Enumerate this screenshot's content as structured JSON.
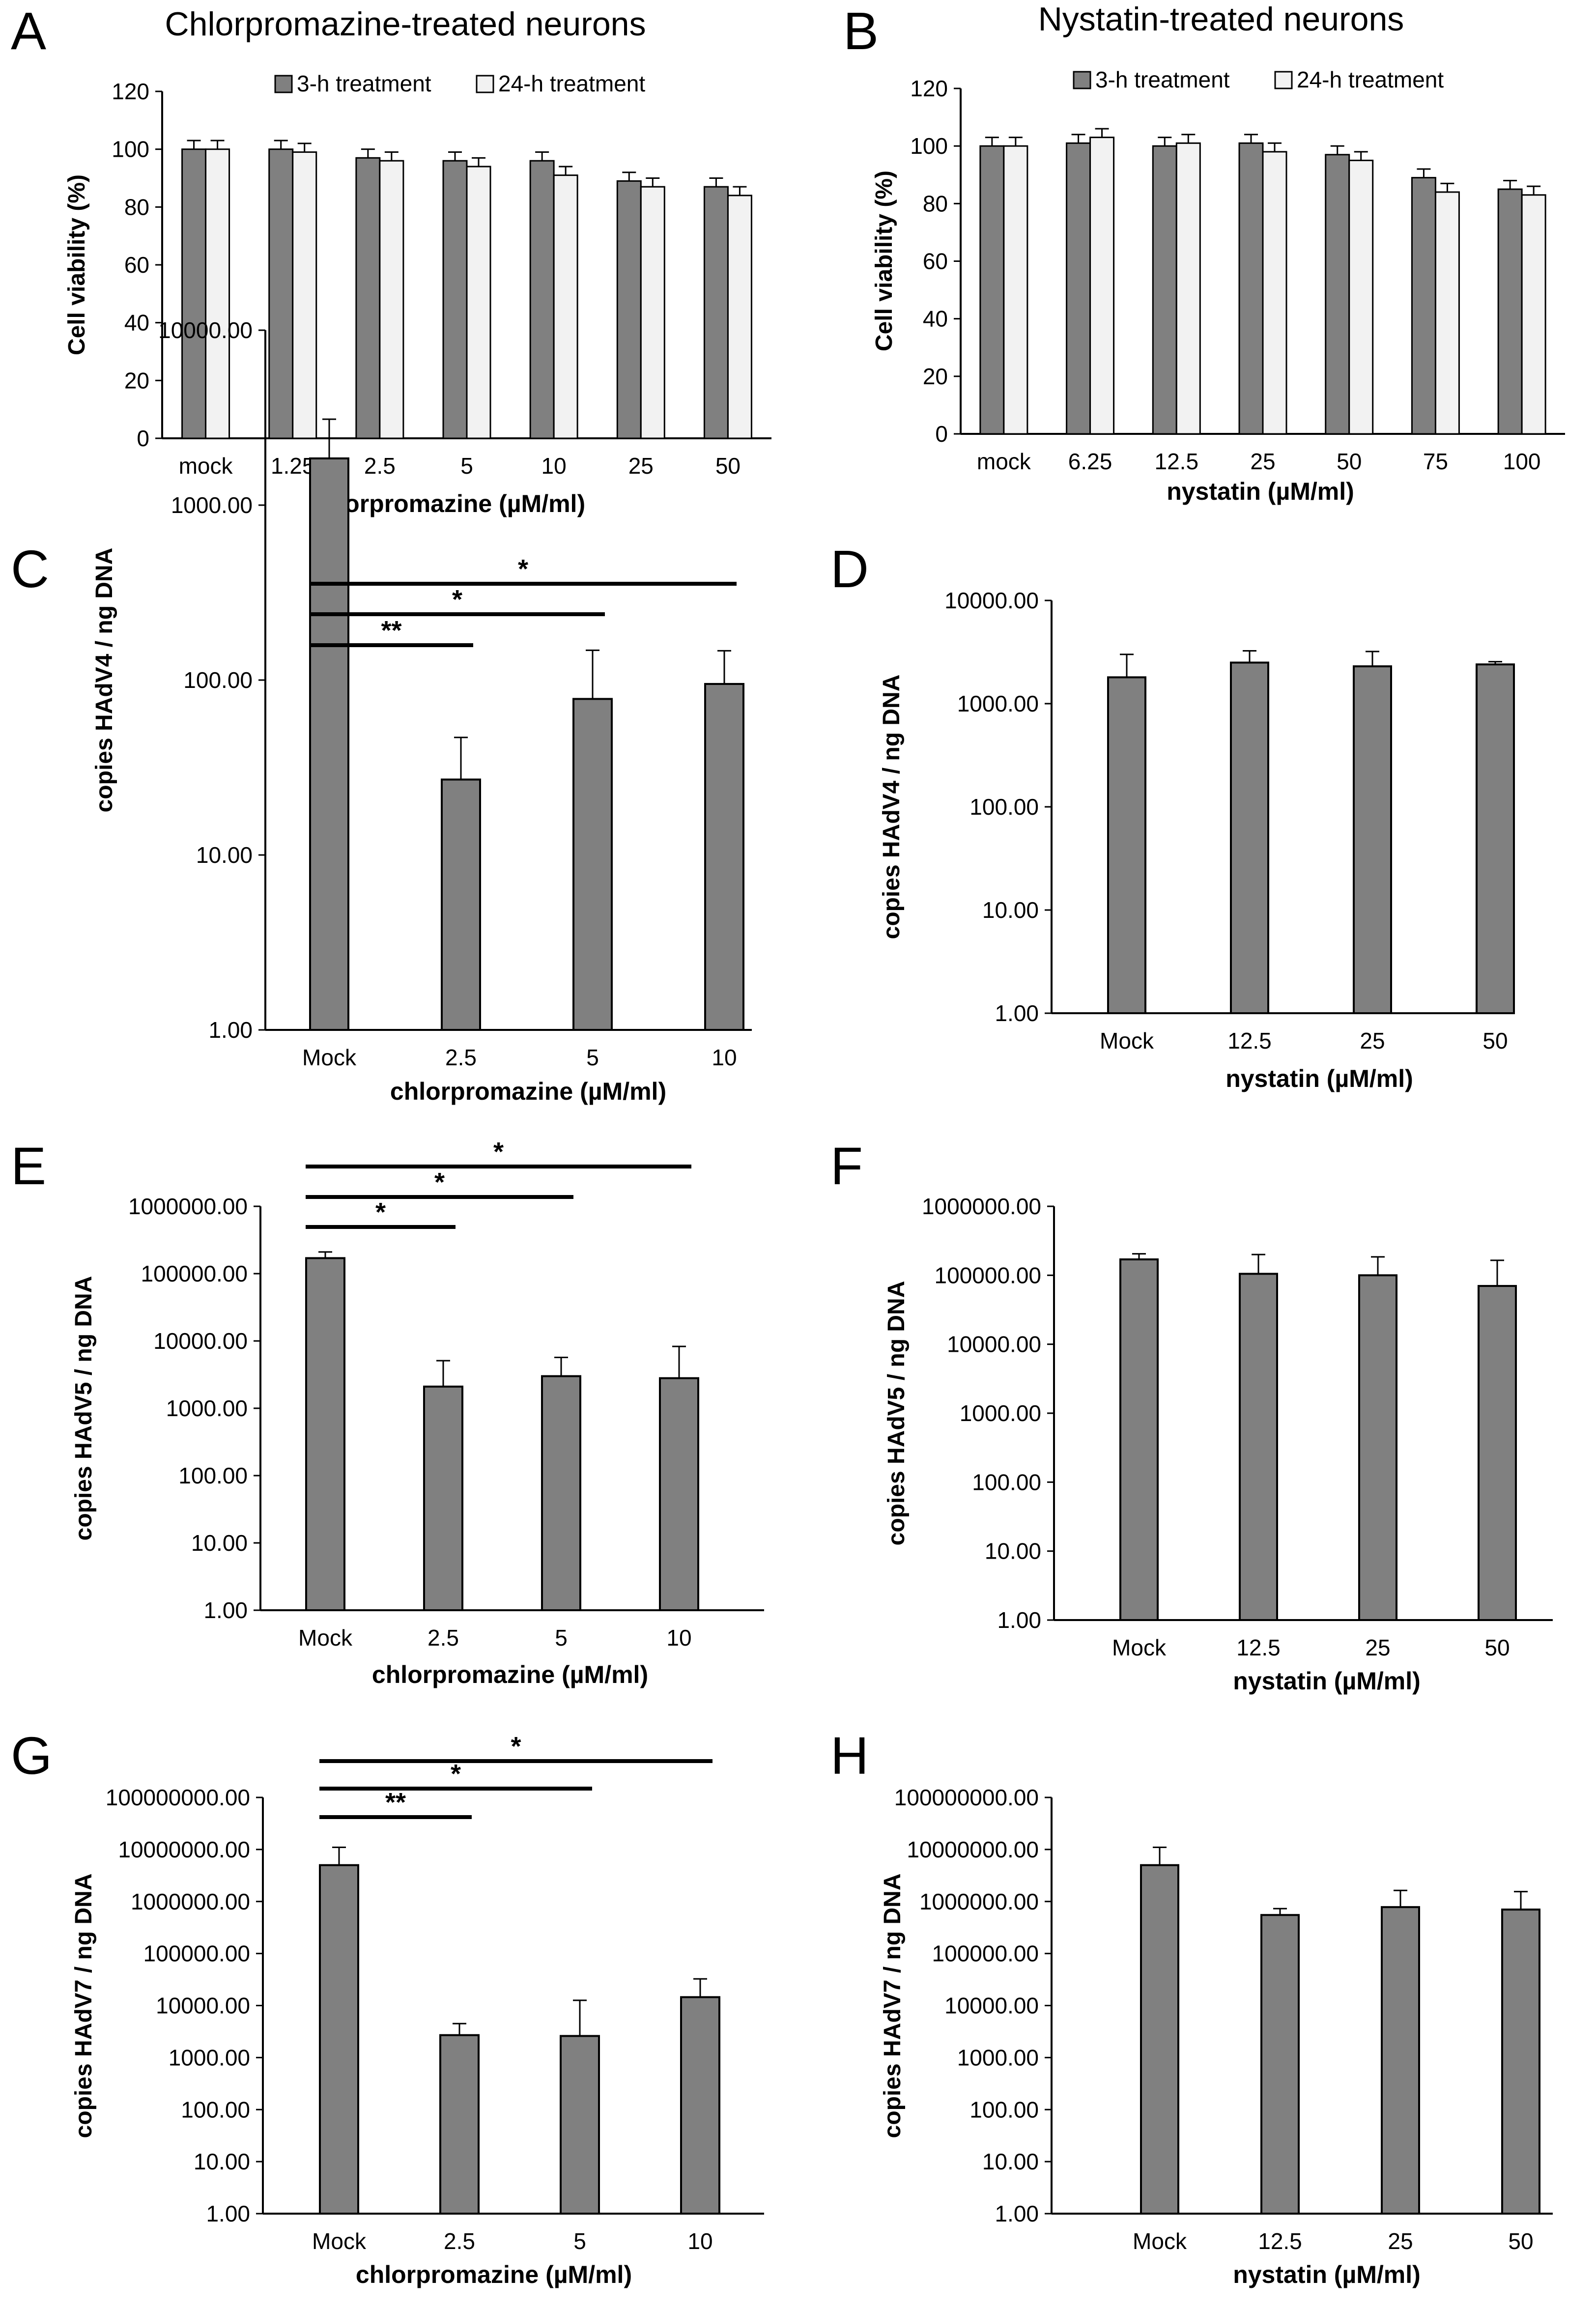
{
  "colors": {
    "bar_3h": "#808080",
    "bar_24h": "#f2f2f2",
    "bar_single": "#808080",
    "axis": "#000000"
  },
  "chart_data": [
    {
      "id": "A",
      "panel_label": "A",
      "type": "bar",
      "title": "Chlorpromazine-treated neurons",
      "categories": [
        "mock",
        "1.25",
        "2.5",
        "5",
        "10",
        "25",
        "50"
      ],
      "series": [
        {
          "name": "3-h treatment",
          "values": [
            100,
            100,
            97,
            96,
            96,
            89,
            87
          ],
          "errors": [
            3,
            3,
            3,
            3,
            3,
            3,
            3
          ]
        },
        {
          "name": "24-h treatment",
          "values": [
            100,
            99,
            96,
            94,
            91,
            87,
            84
          ],
          "errors": [
            3,
            3,
            3,
            3,
            3,
            3,
            3
          ]
        }
      ],
      "xlabel": "chlorpromazine (µM/ml)",
      "ylabel": "Cell viability (%)",
      "ylim": [
        0,
        120
      ],
      "yticks": [
        "0",
        "20",
        "40",
        "60",
        "80",
        "100",
        "120"
      ],
      "scale": "linear",
      "legend": "top"
    },
    {
      "id": "B",
      "panel_label": "B",
      "type": "bar",
      "title": "Nystatin-treated neurons",
      "categories": [
        "mock",
        "6.25",
        "12.5",
        "25",
        "50",
        "75",
        "100"
      ],
      "series": [
        {
          "name": "3-h treatment",
          "values": [
            100,
            101,
            100,
            101,
            97,
            89,
            85
          ],
          "errors": [
            3,
            3,
            3,
            3,
            3,
            3,
            3
          ]
        },
        {
          "name": "24-h treatment",
          "values": [
            100,
            103,
            101,
            98,
            95,
            84,
            83
          ],
          "errors": [
            3,
            3,
            3,
            3,
            3,
            3,
            3
          ]
        }
      ],
      "xlabel": "nystatin (µM/ml)",
      "ylabel": "Cell viability (%)",
      "ylim": [
        0,
        120
      ],
      "yticks": [
        "0",
        "20",
        "40",
        "60",
        "80",
        "100",
        "120"
      ],
      "scale": "linear",
      "legend": "top"
    },
    {
      "id": "C",
      "panel_label": "C",
      "type": "bar",
      "categories": [
        "Mock",
        "2.5",
        "5",
        "10"
      ],
      "series": [
        {
          "name": "HAdV4",
          "values": [
            1850,
            27,
            78,
            95
          ],
          "errors": [
            1250,
            20,
            70,
            52
          ]
        }
      ],
      "xlabel": "chlorpromazine (µM/ml)",
      "ylabel": "copies HAdV4 / ng DNA",
      "ylim_log10": [
        0,
        4
      ],
      "yticks": [
        "1.00",
        "10.00",
        "100.00",
        "1000.00",
        "10000.00"
      ],
      "scale": "log",
      "significance": [
        {
          "from_index": 0,
          "to_index": 1,
          "text": "**"
        },
        {
          "from_index": 0,
          "to_index": 2,
          "text": "*"
        },
        {
          "from_index": 0,
          "to_index": 3,
          "text": "*"
        }
      ]
    },
    {
      "id": "D",
      "panel_label": "D",
      "type": "bar",
      "categories": [
        "Mock",
        "12.5",
        "25",
        "50"
      ],
      "series": [
        {
          "name": "HAdV4",
          "values": [
            1800,
            2500,
            2300,
            2400
          ],
          "errors": [
            1200,
            750,
            900,
            150
          ]
        }
      ],
      "xlabel": "nystatin (µM/ml)",
      "ylabel": "copies HAdV4 / ng DNA",
      "ylim_log10": [
        0,
        4
      ],
      "yticks": [
        "1.00",
        "10.00",
        "100.00",
        "1000.00",
        "10000.00"
      ],
      "scale": "log",
      "significance": []
    },
    {
      "id": "E",
      "panel_label": "E",
      "type": "bar",
      "categories": [
        "Mock",
        "2.5",
        "5",
        "10"
      ],
      "series": [
        {
          "name": "HAdV5",
          "values": [
            170000,
            2100,
            3000,
            2800
          ],
          "errors": [
            40000,
            3000,
            2700,
            5500
          ]
        }
      ],
      "xlabel": "chlorpromazine (µM/ml)",
      "ylabel": "copies HAdV5 / ng DNA",
      "ylim_log10": [
        0,
        6
      ],
      "yticks": [
        "1.00",
        "10.00",
        "100.00",
        "1000.00",
        "10000.00",
        "100000.00",
        "1000000.00"
      ],
      "scale": "log",
      "significance": [
        {
          "from_index": 0,
          "to_index": 1,
          "text": "*"
        },
        {
          "from_index": 0,
          "to_index": 2,
          "text": "*"
        },
        {
          "from_index": 0,
          "to_index": 3,
          "text": "*"
        }
      ]
    },
    {
      "id": "F",
      "panel_label": "F",
      "type": "bar",
      "categories": [
        "Mock",
        "12.5",
        "25",
        "50"
      ],
      "series": [
        {
          "name": "HAdV5",
          "values": [
            170000,
            105000,
            100000,
            70000
          ],
          "errors": [
            35000,
            95000,
            85000,
            95000
          ]
        }
      ],
      "xlabel": "nystatin (µM/ml)",
      "ylabel": "copies HAdV5 / ng DNA",
      "ylim_log10": [
        0,
        6
      ],
      "yticks": [
        "1.00",
        "10.00",
        "100.00",
        "1000.00",
        "10000.00",
        "100000.00",
        "1000000.00"
      ],
      "scale": "log",
      "significance": []
    },
    {
      "id": "G",
      "panel_label": "G",
      "type": "bar",
      "categories": [
        "Mock",
        "2.5",
        "5",
        "10"
      ],
      "series": [
        {
          "name": "HAdV7",
          "values": [
            5000000,
            2700,
            2600,
            14500
          ],
          "errors": [
            6000000,
            1800,
            10000,
            18000
          ]
        }
      ],
      "xlabel": "chlorpromazine (µM/ml)",
      "ylabel": "copies HAdV7 / ng DNA",
      "ylim_log10": [
        0,
        8
      ],
      "yticks": [
        "1.00",
        "10.00",
        "100.00",
        "1000.00",
        "10000.00",
        "100000.00",
        "1000000.00",
        "10000000.00",
        "100000000.00"
      ],
      "scale": "log",
      "significance": [
        {
          "from_index": 0,
          "to_index": 1,
          "text": "**"
        },
        {
          "from_index": 0,
          "to_index": 2,
          "text": "*"
        },
        {
          "from_index": 0,
          "to_index": 3,
          "text": "*"
        }
      ]
    },
    {
      "id": "H",
      "panel_label": "H",
      "type": "bar",
      "categories": [
        "Mock",
        "12.5",
        "25",
        "50"
      ],
      "series": [
        {
          "name": "HAdV7",
          "values": [
            5000000,
            550000,
            780000,
            700000
          ],
          "errors": [
            6000000,
            180000,
            850000,
            850000
          ]
        }
      ],
      "xlabel": "nystatin (µM/ml)",
      "ylabel": "copies HAdV7 / ng DNA",
      "ylim_log10": [
        0,
        8
      ],
      "yticks": [
        "1.00",
        "10.00",
        "100.00",
        "1000.00",
        "10000.00",
        "100000.00",
        "1000000.00",
        "10000000.00",
        "100000000.00"
      ],
      "scale": "log",
      "significance": []
    }
  ]
}
